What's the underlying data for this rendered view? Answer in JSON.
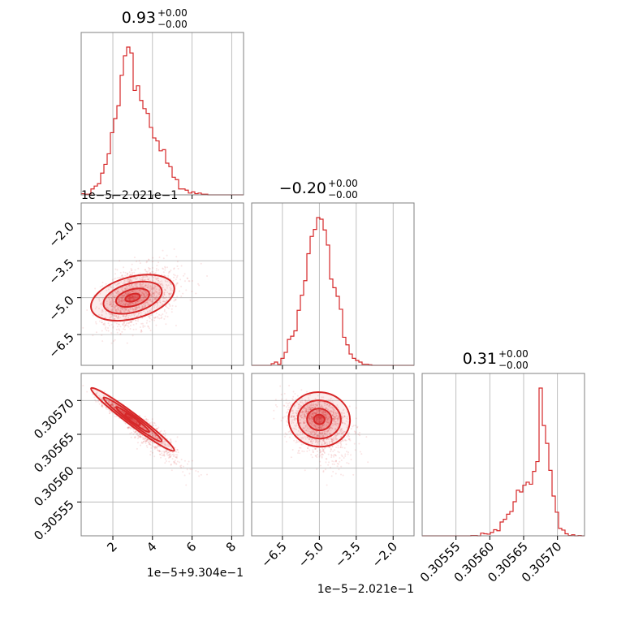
{
  "chart_data": {
    "type": "corner",
    "color": "#d62728",
    "grid": true,
    "params": [
      {
        "title": "0.93",
        "err_plus": "+0.00",
        "err_minus": "−0.00",
        "range": [
          0.4,
          8.6
        ],
        "ticks": [
          2,
          4,
          6,
          8
        ],
        "tick_labels": [
          "2",
          "4",
          "6",
          "8"
        ],
        "offset_text": "1e−5+9.304e−1",
        "mode": 3.0,
        "sigma_low": 0.75,
        "sigma_high": 1.15
      },
      {
        "title": "−0.20",
        "err_plus": "+0.00",
        "err_minus": "−0.00",
        "range": [
          -7.75,
          -1.15
        ],
        "ticks": [
          -6.5,
          -5.0,
          -3.5,
          -2.0
        ],
        "tick_labels": [
          "−6.5",
          "−5.0",
          "−3.5",
          "−2.0"
        ],
        "offset_text": "1e−5−2.021e−1",
        "mode": -5.0,
        "sigma_low": 0.6,
        "sigma_high": 0.6
      },
      {
        "title": "0.31",
        "err_plus": "+0.00",
        "err_minus": "−0.00",
        "range": [
          0.3055,
          0.30574
        ],
        "ticks": [
          0.30555,
          0.3056,
          0.30565,
          0.3057
        ],
        "tick_labels": [
          "0.30555",
          "0.30560",
          "0.30565",
          "0.30570"
        ],
        "offset_text": "",
        "mode": 0.305672,
        "sigma_low": 3e-05,
        "sigma_high": 1.4e-05
      }
    ],
    "corr_01": 0.35,
    "corr_02": -0.95,
    "corr_12": -0.1
  }
}
